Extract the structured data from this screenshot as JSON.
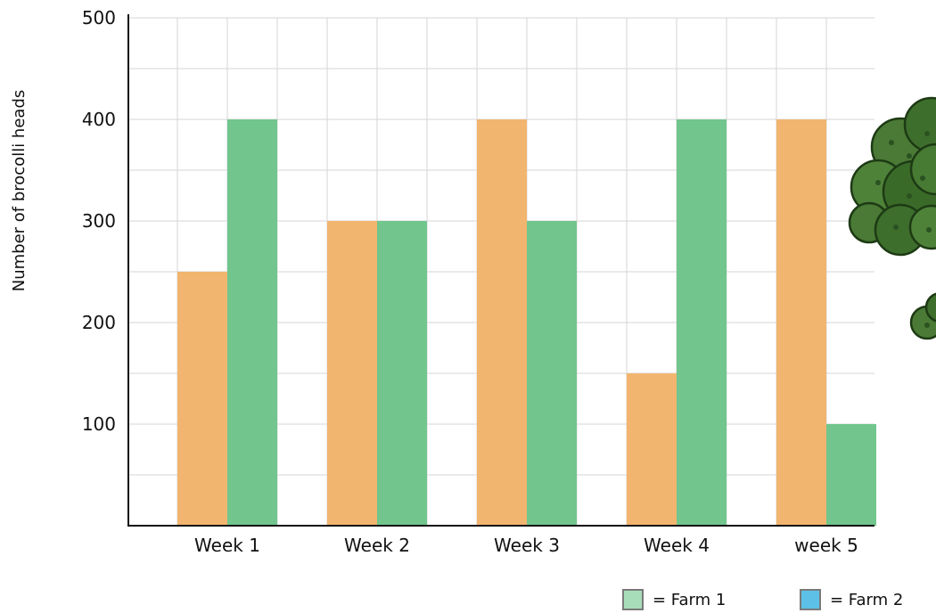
{
  "chart_data": {
    "type": "bar",
    "categories": [
      "Week 1",
      "Week 2",
      "Week 3",
      "Week 4",
      "week 5"
    ],
    "series": [
      {
        "values": [
          250,
          300,
          400,
          150,
          400
        ],
        "color": "#F2B56F"
      },
      {
        "values": [
          400,
          300,
          300,
          400,
          100
        ],
        "color": "#71C58D"
      }
    ],
    "ylabel": "Number of brocolli heads",
    "xlabel": "",
    "title": "",
    "ylim": [
      0,
      500
    ],
    "yticks": [
      100,
      200,
      300,
      400,
      500
    ],
    "y_minor_step": 50,
    "grid": true,
    "legend_placement": "bottom-right",
    "legend": [
      {
        "label": "= Farm 1",
        "color": "#A8DDBA"
      },
      {
        "label": "= Farm 2",
        "color": "#5DC0E6"
      }
    ],
    "decoration": "broccoli-illustration"
  }
}
